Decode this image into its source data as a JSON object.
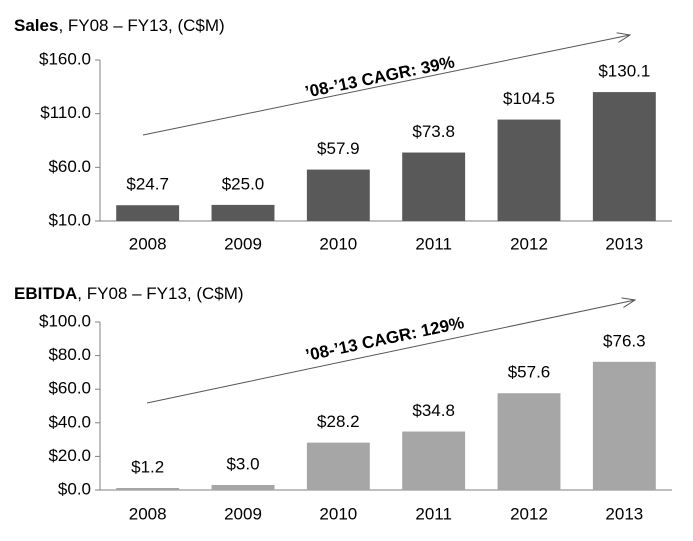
{
  "chart_data": [
    {
      "type": "bar",
      "title": "Sales",
      "subtitle": ", FY08 – FY13, (C$M)",
      "annotation": "’08-’13 CAGR: 39%",
      "categories": [
        "2008",
        "2009",
        "2010",
        "2011",
        "2012",
        "2013"
      ],
      "values": [
        24.7,
        25.0,
        57.9,
        73.8,
        104.5,
        130.1
      ],
      "value_labels": [
        "$24.7",
        "$25.0",
        "$57.9",
        "$73.8",
        "$104.5",
        "$130.1"
      ],
      "color": "#595959",
      "ylim": [
        10,
        160
      ],
      "yticks": [
        {
          "value": 10,
          "label": "$10.0"
        },
        {
          "value": 60,
          "label": "$60.0"
        },
        {
          "value": 110,
          "label": "$110.0"
        },
        {
          "value": 160,
          "label": "$160.0"
        }
      ]
    },
    {
      "type": "bar",
      "title": "EBITDA",
      "subtitle": ", FY08 – FY13, (C$M)",
      "annotation": "’08-’13 CAGR: 129%",
      "categories": [
        "2008",
        "2009",
        "2010",
        "2011",
        "2012",
        "2013"
      ],
      "values": [
        1.2,
        3.0,
        28.2,
        34.8,
        57.6,
        76.3
      ],
      "value_labels": [
        "$1.2",
        "$3.0",
        "$28.2",
        "$34.8",
        "$57.6",
        "$76.3"
      ],
      "color": "#a6a6a6",
      "ylim": [
        0,
        100
      ],
      "yticks": [
        {
          "value": 0,
          "label": "$0.0"
        },
        {
          "value": 20,
          "label": "$20.0"
        },
        {
          "value": 40,
          "label": "$40.0"
        },
        {
          "value": 60,
          "label": "$60.0"
        },
        {
          "value": 80,
          "label": "$80.0"
        },
        {
          "value": 100,
          "label": "$100.0"
        }
      ]
    }
  ]
}
